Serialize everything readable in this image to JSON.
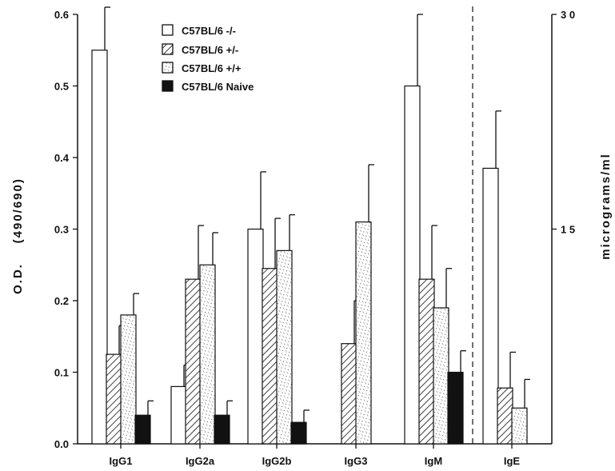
{
  "chart_data": {
    "type": "bar",
    "ylabel_left": "O.D.    (490/690)",
    "ylabel_right": "micrograms/ml",
    "ylim": [
      0,
      0.6
    ],
    "y_ticks": [
      "0.0",
      "0.1",
      "0.2",
      "0.3",
      "0.4",
      "0.5",
      "0.6"
    ],
    "y_right_ticks": [
      {
        "at": 0.3,
        "label": "1 5"
      },
      {
        "at": 0.6,
        "label": "3 0"
      }
    ],
    "y_right_range": [
      0,
      30
    ],
    "right_axis_applies_to": [
      "IgE"
    ],
    "categories": [
      "IgG1",
      "IgG2a",
      "IgG2b",
      "IgG3",
      "IgM",
      "IgE"
    ],
    "series": [
      {
        "name": "C57BL/6 -/-",
        "pattern": "open",
        "values": [
          0.55,
          0.08,
          0.3,
          null,
          0.5,
          0.385
        ],
        "errors": [
          0.06,
          0.03,
          0.08,
          null,
          0.1,
          0.08
        ]
      },
      {
        "name": "C57BL/6 +/-",
        "pattern": "hatched",
        "values": [
          0.125,
          0.23,
          0.245,
          0.14,
          0.23,
          0.078
        ],
        "errors": [
          0.04,
          0.075,
          0.07,
          0.06,
          0.075,
          0.05
        ]
      },
      {
        "name": "C57BL/6 +/+",
        "pattern": "dotted",
        "values": [
          0.18,
          0.25,
          0.27,
          0.31,
          0.19,
          0.05
        ],
        "errors": [
          0.03,
          0.045,
          0.05,
          0.08,
          0.055,
          0.04
        ]
      },
      {
        "name": "C57BL/6 Naive",
        "pattern": "solid",
        "values": [
          0.04,
          0.04,
          0.03,
          null,
          0.1,
          null
        ],
        "errors": [
          0.02,
          0.02,
          0.017,
          null,
          0.03,
          null
        ]
      }
    ],
    "legend_position": "top-center",
    "grid": false,
    "divider": "dashed vertical line between IgM and IgE"
  }
}
